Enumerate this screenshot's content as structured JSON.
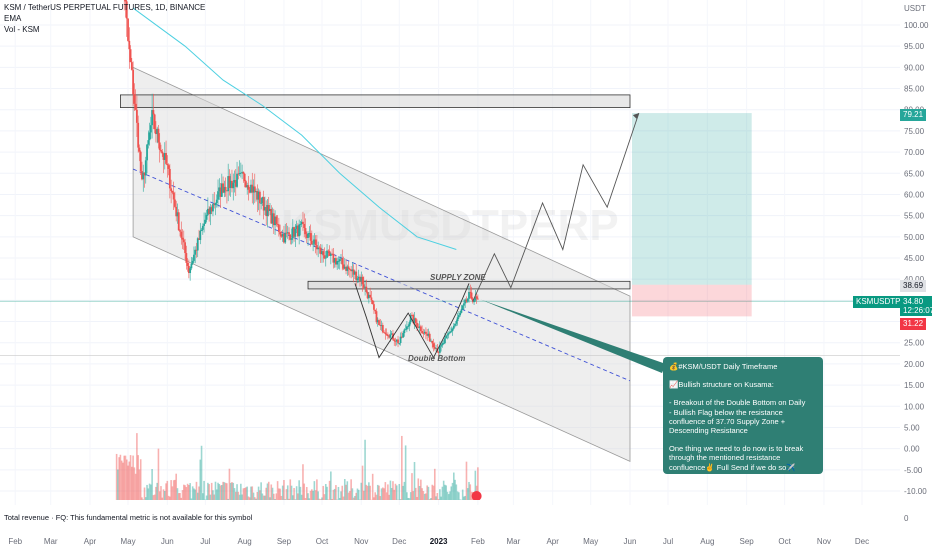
{
  "header": {
    "symbol_line": "KSM / TetherUS PERPETUAL FUTURES, 1D, BINANCE",
    "indicator_1": "EMA",
    "indicator_2": "Vol - KSM"
  },
  "watermark": "KSMUSDTPERP",
  "price_axis": {
    "unit": "USDT",
    "ticks": [
      "100.00",
      "95.00",
      "90.00",
      "85.00",
      "80.00",
      "75.00",
      "70.00",
      "65.00",
      "60.00",
      "55.00",
      "50.00",
      "45.00",
      "40.00",
      "35.00",
      "30.00",
      "25.00",
      "20.00",
      "15.00",
      "10.00",
      "5.00",
      "0.00",
      "-5.00",
      "-10.00"
    ],
    "zero_label": "0"
  },
  "time_axis": [
    "Feb",
    "Mar",
    "Apr",
    "May",
    "Jun",
    "Jul",
    "Aug",
    "Sep",
    "Oct",
    "Nov",
    "Dec",
    "2023",
    "Feb",
    "Mar",
    "Apr",
    "May",
    "Jun",
    "Jul",
    "Aug",
    "Sep",
    "Oct",
    "Nov",
    "Dec"
  ],
  "price_tags": {
    "target": "79.21",
    "entry": "38.69",
    "symbol": "KSMUSDTPERP",
    "last": "34.80",
    "countdown": "12:26:07",
    "stop": "31.22"
  },
  "colors": {
    "up": "#26a69a",
    "down": "#ef5350",
    "ema": "#4dd0e1",
    "target_tag": "#26a69a",
    "stop_tag": "#f23645",
    "symbol_tag": "#089981",
    "channel_fill": "#d9d9d9",
    "annotation_bg": "#2f7f74"
  },
  "chart_labels": {
    "supply_zone": "SUPPLY ZONE",
    "double_bottom": "Double Bottom"
  },
  "annotation": {
    "title": "💰#KSM/USDT Daily Timeframe",
    "line_1": "📈Bullish structure on Kusama:",
    "line_2": "- Breakout of the Double Bottom on Daily",
    "line_3": "- Bullish Flag below the resistance confluence of 37.70 Supply Zone + Descending Resistance",
    "line_4": "One thing we need to do now is to break through the mentioned resistance confluence✌️ Full Send if we do so✈️"
  },
  "footer": "Total revenue · FQ: This fundamental metric is not available for this symbol",
  "chart_data": {
    "type": "line",
    "series": [
      {
        "x": [
          "2022-04-22",
          "2022-05-01",
          "2022-05-05",
          "2022-05-09",
          "2022-05-12",
          "2022-05-20",
          "2022-06-01",
          "2022-06-10",
          "2022-06-18",
          "2022-07-01",
          "2022-07-15",
          "2022-08-01",
          "2022-08-15",
          "2022-09-01",
          "2022-09-15",
          "2022-10-01",
          "2022-10-15",
          "2022-11-01",
          "2022-11-08",
          "2022-11-15",
          "2022-12-01",
          "2022-12-10",
          "2022-12-25",
          "2023-01-01",
          "2023-01-15",
          "2023-01-25",
          "2023-02-01"
        ],
        "values": [
          132,
          96,
          85,
          73,
          62,
          78,
          66,
          53,
          42,
          54,
          62,
          64,
          58,
          50,
          52,
          46,
          44,
          40,
          35,
          29,
          25,
          31,
          26,
          23,
          30,
          36,
          34.8
        ]
      },
      {
        "x": [
          "2022-05-05",
          "2022-06-15",
          "2022-07-15",
          "2022-08-15",
          "2022-09-15",
          "2022-10-15",
          "2022-11-15",
          "2022-12-15",
          "2023-01-15"
        ],
        "values": [
          104,
          95,
          87,
          81,
          74,
          65,
          57,
          50,
          47
        ]
      }
    ],
    "ylim": [
      -10,
      100
    ],
    "xlim": [
      "2022-01-20",
      "2023-12-31"
    ],
    "supply_zone": [
      37.7,
      39.5
    ],
    "resistance_box": [
      80.5,
      83.5
    ],
    "position": {
      "entry": 38.69,
      "target": 79.21,
      "stop": 31.22,
      "last": 34.8
    }
  }
}
